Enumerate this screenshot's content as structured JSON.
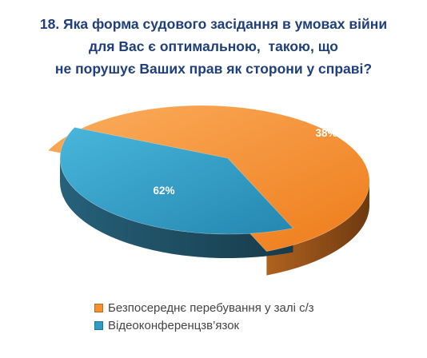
{
  "chart_data": {
    "type": "pie",
    "title_lines": [
      "18. Яка форма судового засідання в умовах війни",
      "для Вас є оптимальною,  такою, що",
      "не порушує Ваших прав як сторони у справі?"
    ],
    "categories": [
      "Безпосереднє перебування у залі с/з",
      "Відеоконференцзв’язок"
    ],
    "values": [
      62,
      38
    ],
    "data_labels": [
      "62%",
      "38%"
    ],
    "legend_position": "bottom",
    "style": "3d-exploded",
    "colors": {
      "orange_top": "#f7902f",
      "orange_side": "#8a4a14",
      "blue_top": "#2e9bc4",
      "blue_side": "#1d4a5c",
      "title": "#1f3f7a",
      "label": "#ffffff"
    }
  }
}
